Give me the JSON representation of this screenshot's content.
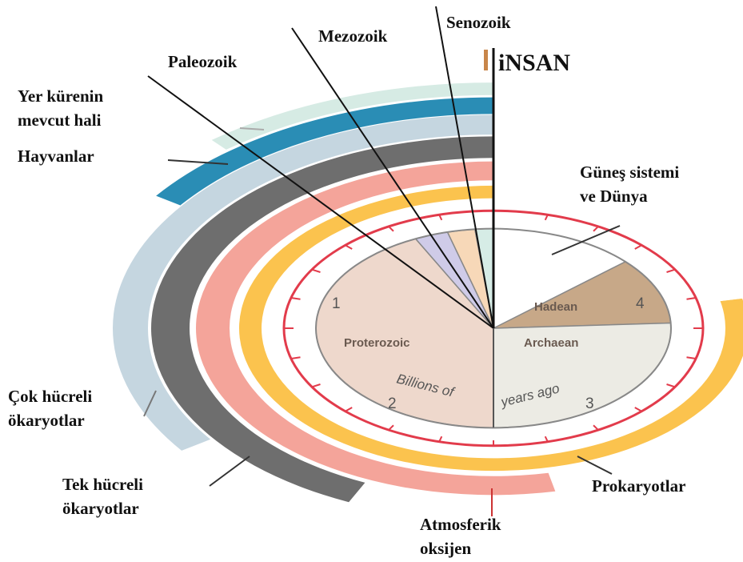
{
  "labels": {
    "senozoik": "Senozoik",
    "mezozoik": "Mezozoik",
    "paleozoik": "Paleozoik",
    "insan": "iNSAN",
    "yer_1": "Yer kürenin",
    "yer_2": "mevcut hali",
    "hayvanlar": "Hayvanlar",
    "gunes_1": "Güneş sistemi",
    "gunes_2": "ve Dünya",
    "cok_1": "Çok hücreli",
    "cok_2": "ökaryotlar",
    "tek_1": "Tek hücreli",
    "tek_2": "ökaryotlar",
    "prokaryotlar": "Prokaryotlar",
    "atmo_1": "Atmosferik",
    "atmo_2": "oksijen"
  },
  "pie": {
    "proterozoic": "Proterozoic",
    "archaean": "Archaean",
    "hadean": "Hadean",
    "billions": "Billions of",
    "years": "years ago",
    "n1": "1",
    "n2": "2",
    "n3": "3",
    "n4": "4"
  }
}
